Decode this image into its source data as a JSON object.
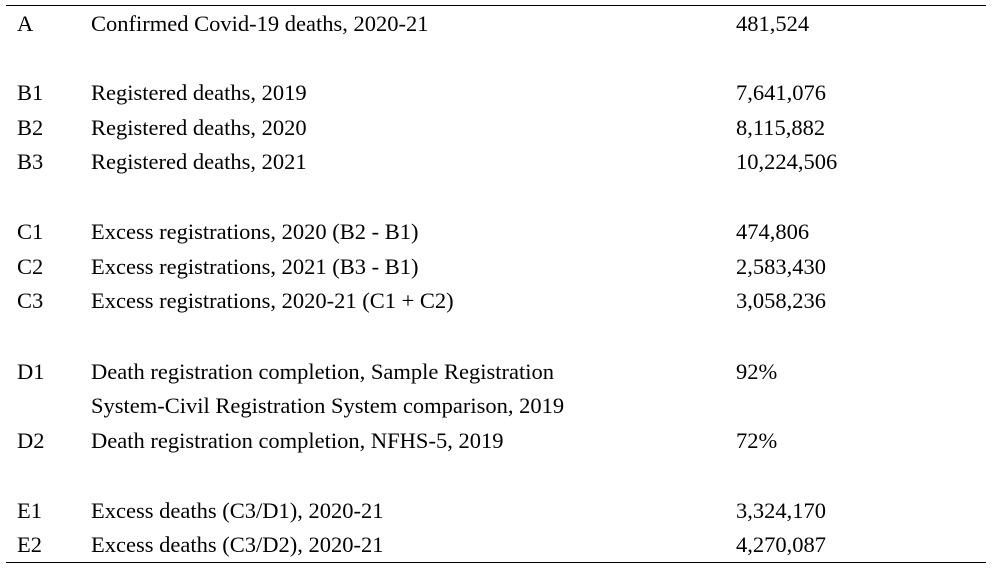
{
  "rows": [
    {
      "code": "A",
      "label": "Confirmed Covid-19 deaths, 2020-21",
      "value": "481,524"
    },
    {
      "code": "B1",
      "label": "Registered deaths, 2019",
      "value": "7,641,076"
    },
    {
      "code": "B2",
      "label": "Registered deaths, 2020",
      "value": "8,115,882"
    },
    {
      "code": "B3",
      "label": "Registered deaths, 2021",
      "value": "10,224,506"
    },
    {
      "code": "C1",
      "label": "Excess registrations, 2020 (B2 - B1)",
      "value": "474,806"
    },
    {
      "code": "C2",
      "label": "Excess registrations, 2021 (B3 - B1)",
      "value": "2,583,430"
    },
    {
      "code": "C3",
      "label": "Excess registrations, 2020-21 (C1 + C2)",
      "value": "3,058,236"
    },
    {
      "code": "D1",
      "label_line1": "Death registration completion, Sample Registration",
      "label_line2": "System-Civil Registration System comparison, 2019",
      "value": "92%"
    },
    {
      "code": "D2",
      "label": "Death registration completion, NFHS-5, 2019",
      "value": "72%"
    },
    {
      "code": "E1",
      "label": "Excess deaths (C3/D1), 2020-21",
      "value": "3,324,170"
    },
    {
      "code": "E2",
      "label": "Excess deaths (C3/D2), 2020-21",
      "value": "4,270,087"
    }
  ]
}
